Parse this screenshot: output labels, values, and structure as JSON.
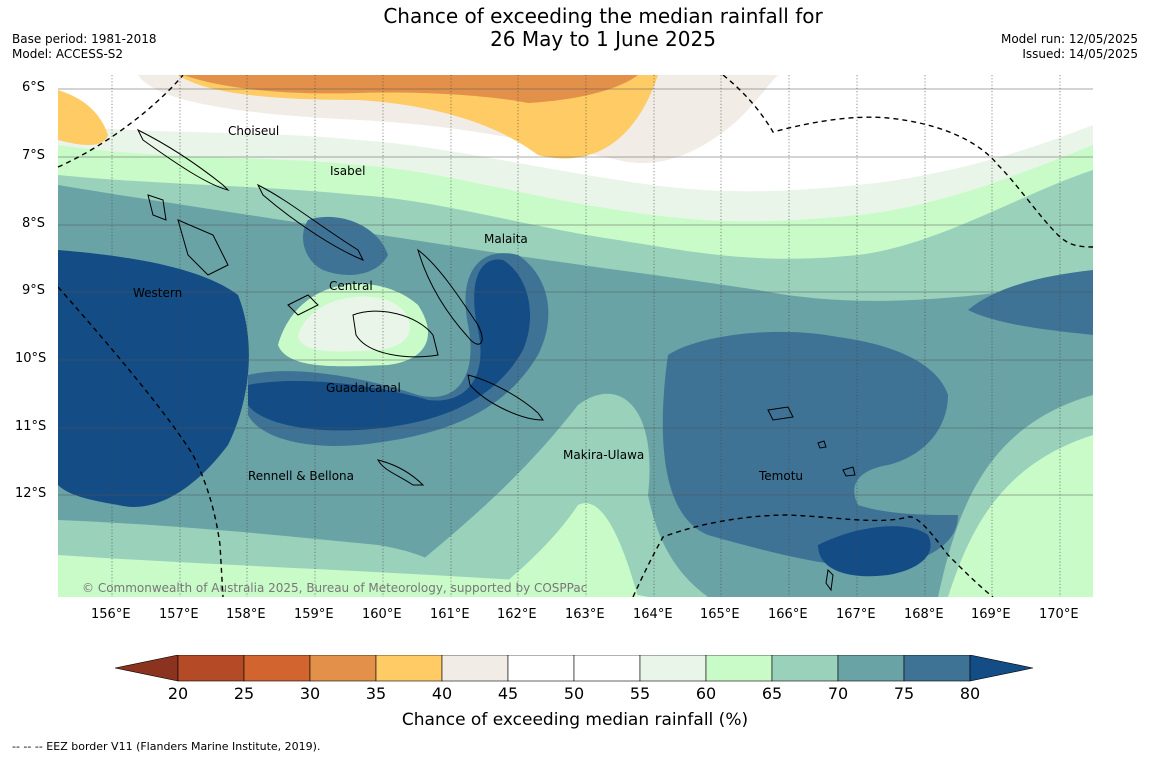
{
  "title": {
    "line1": "Chance of exceeding the median rainfall for",
    "line2": "26 May to 1 June 2025"
  },
  "meta_left": {
    "base_period": "Base period: 1981-2018",
    "model": "Model: ACCESS-S2"
  },
  "meta_right": {
    "model_run": "Model run: 12/05/2025",
    "issued": "Issued: 14/05/2025"
  },
  "map": {
    "lat_ticks": [
      "6°S",
      "7°S",
      "8°S",
      "9°S",
      "10°S",
      "11°S",
      "12°S"
    ],
    "lon_ticks": [
      "156°E",
      "157°E",
      "158°E",
      "159°E",
      "160°E",
      "161°E",
      "162°E",
      "163°E",
      "164°E",
      "165°E",
      "166°E",
      "167°E",
      "168°E",
      "169°E",
      "170°E"
    ],
    "places": [
      {
        "name": "Choiseul",
        "lon": 158.05,
        "lat": -6.6
      },
      {
        "name": "Isabel",
        "lon": 159.45,
        "lat": -7.2
      },
      {
        "name": "Malaita",
        "lon": 161.5,
        "lat": -8.2
      },
      {
        "name": "Central",
        "lon": 159.5,
        "lat": -8.9
      },
      {
        "name": "Western",
        "lon": 156.3,
        "lat": -8.95
      },
      {
        "name": "Guadalcanal",
        "lon": 159.7,
        "lat": -10.35
      },
      {
        "name": "Makira-Ulawa",
        "lon": 163.25,
        "lat": -11.35
      },
      {
        "name": "Rennell & Bellona",
        "lon": 158.75,
        "lat": -11.7
      },
      {
        "name": "Temotu",
        "lon": 165.85,
        "lat": -11.7
      }
    ],
    "copyright": "© Commonwealth of Australia 2025, Bureau of Meteorology, supported by COSPPac"
  },
  "colorbar": {
    "labels": [
      "20",
      "25",
      "30",
      "35",
      "40",
      "45",
      "50",
      "55",
      "60",
      "65",
      "70",
      "75",
      "80"
    ],
    "colors": [
      "#8c3320",
      "#b44a26",
      "#d2642f",
      "#e3914a",
      "#fecb64",
      "#f2ece6",
      "#ffffff",
      "#ffffff",
      "#e9f5e8",
      "#c9fbc9",
      "#9ad1bb",
      "#6aa3a6",
      "#3f7396",
      "#144c85"
    ],
    "title": "Chance of exceeding median rainfall (%)"
  },
  "footer": "--  --  -- EEZ border V11 (Flanders Marine Institute, 2019)."
}
